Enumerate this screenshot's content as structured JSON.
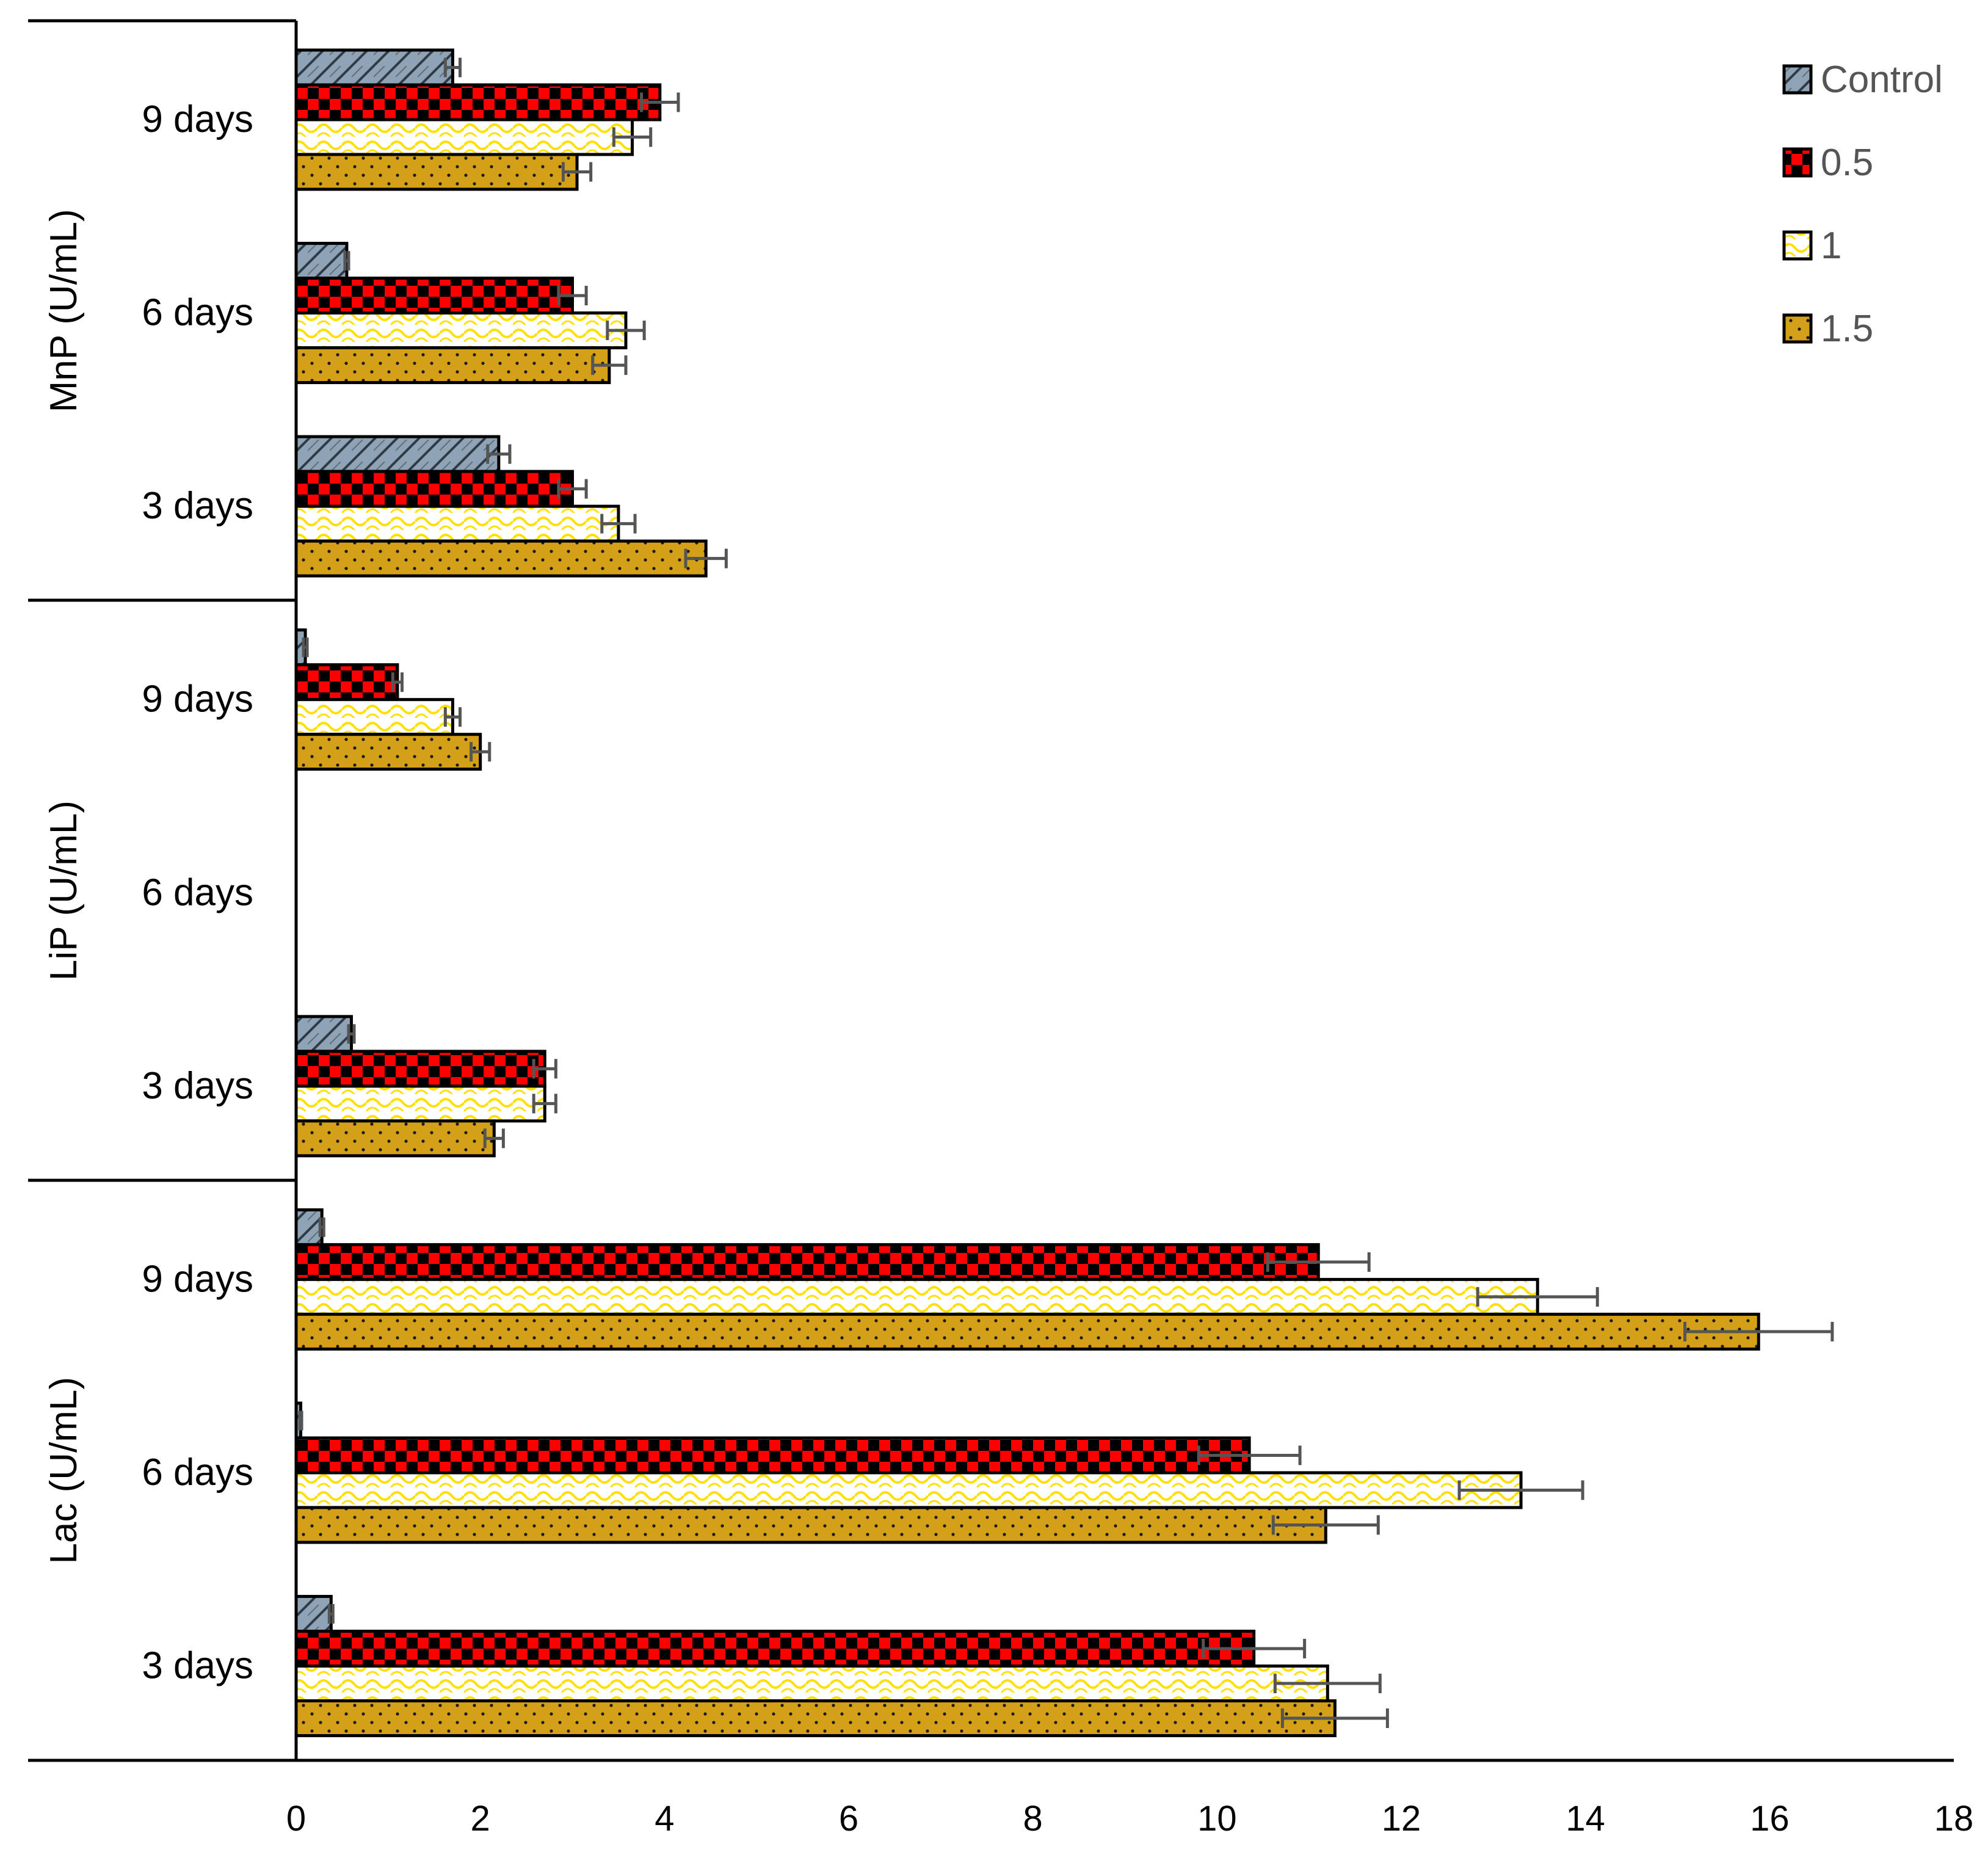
{
  "chart_data": {
    "type": "bar",
    "orientation": "horizontal",
    "title": "",
    "xlabel": "",
    "ylabel": "",
    "xlim": [
      0,
      18
    ],
    "xticks": [
      0,
      2,
      4,
      6,
      8,
      10,
      12,
      14,
      16,
      18
    ],
    "groups": [
      "MnP (U/mL)",
      "LiP (U/mL)",
      "Lac (U/mL)"
    ],
    "categories": [
      "9 days",
      "6 days",
      "3 days"
    ],
    "legend_position": "top-right",
    "series": [
      {
        "name": "Control",
        "color": "#8EA3B5",
        "pattern": "hatch",
        "values": {
          "MnP (U/mL)": {
            "9 days": 1.7,
            "6 days": 0.55,
            "3 days": 2.2
          },
          "LiP (U/mL)": {
            "9 days": 0.1,
            "6 days": 0.0,
            "3 days": 0.6
          },
          "Lac (U/mL)": {
            "9 days": 0.28,
            "6 days": 0.05,
            "3 days": 0.38
          }
        },
        "errors": {
          "MnP (U/mL)": {
            "9 days": 0.08,
            "6 days": 0.02,
            "3 days": 0.12
          },
          "LiP (U/mL)": {
            "9 days": 0.02,
            "6 days": 0.0,
            "3 days": 0.03
          },
          "Lac (U/mL)": {
            "9 days": 0.02,
            "6 days": 0.01,
            "3 days": 0.02
          }
        }
      },
      {
        "name": "0.5",
        "color": "#FF0000",
        "pattern": "checker",
        "values": {
          "MnP (U/mL)": {
            "9 days": 3.95,
            "6 days": 3.0,
            "3 days": 3.0
          },
          "LiP (U/mL)": {
            "9 days": 1.1,
            "6 days": 0.0,
            "3 days": 2.7
          },
          "Lac (U/mL)": {
            "9 days": 11.1,
            "6 days": 10.35,
            "3 days": 10.4
          }
        },
        "errors": {
          "MnP (U/mL)": {
            "9 days": 0.2,
            "6 days": 0.15,
            "3 days": 0.15
          },
          "LiP (U/mL)": {
            "9 days": 0.05,
            "6 days": 0.0,
            "3 days": 0.12
          },
          "Lac (U/mL)": {
            "9 days": 0.55,
            "6 days": 0.55,
            "3 days": 0.55
          }
        }
      },
      {
        "name": "1",
        "color": "#FFFF00",
        "pattern": "wave",
        "values": {
          "MnP (U/mL)": {
            "9 days": 3.65,
            "6 days": 3.58,
            "3 days": 3.5
          },
          "LiP (U/mL)": {
            "9 days": 1.7,
            "6 days": 0.0,
            "3 days": 2.7
          },
          "Lac (U/mL)": {
            "9 days": 13.48,
            "6 days": 13.3,
            "3 days": 11.2
          }
        },
        "errors": {
          "MnP (U/mL)": {
            "9 days": 0.2,
            "6 days": 0.2,
            "3 days": 0.18
          },
          "LiP (U/mL)": {
            "9 days": 0.08,
            "6 days": 0.0,
            "3 days": 0.12
          },
          "Lac (U/mL)": {
            "9 days": 0.65,
            "6 days": 0.67,
            "3 days": 0.57
          }
        }
      },
      {
        "name": "1.5",
        "color": "#D4A017",
        "pattern": "dots",
        "values": {
          "MnP (U/mL)": {
            "9 days": 3.05,
            "6 days": 3.4,
            "3 days": 4.45
          },
          "LiP (U/mL)": {
            "9 days": 2.0,
            "6 days": 0.0,
            "3 days": 2.15
          },
          "Lac (U/mL)": {
            "9 days": 15.88,
            "6 days": 11.18,
            "3 days": 11.28
          }
        },
        "errors": {
          "MnP (U/mL)": {
            "9 days": 0.15,
            "6 days": 0.18,
            "3 days": 0.22
          },
          "LiP (U/mL)": {
            "9 days": 0.1,
            "6 days": 0.0,
            "3 days": 0.1
          },
          "Lac (U/mL)": {
            "9 days": 0.8,
            "6 days": 0.57,
            "3 days": 0.57
          }
        }
      }
    ]
  }
}
